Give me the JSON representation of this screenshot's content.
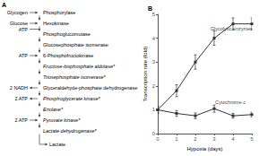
{
  "chart_data": [
    {
      "type": "pathway",
      "title": "A",
      "steps": [
        "Phosphorylase",
        "Hexokinase",
        "Phosphoglucomutase",
        "Glucosephosphate isomerase",
        "6-Phosphofructokinase",
        "Fructose-bisphosphate aldolase*",
        "Triosephosphate isomerase*",
        "Glyceraldehyde-phosphate dehydrogenase",
        "Phosphoglycerate kinase*",
        "Enolase*",
        "Pyruvate kinase*",
        "Lactate dehydrogenase*"
      ],
      "inputs": [
        {
          "label": "Glycogen",
          "step": "Phosphorylase"
        },
        {
          "label": "Glucose",
          "step": "Hexokinase"
        },
        {
          "label": "ATP",
          "step": "Hexokinase"
        },
        {
          "label": "ATP",
          "step": "6-Phosphofructokinase"
        },
        {
          "label": "2 ATP",
          "step": "Pyruvate kinase*"
        }
      ],
      "outputs": [
        {
          "label": "2 NADH",
          "step": "Glyceraldehyde-phosphate dehydrogenase"
        },
        {
          "label": "2 ATP",
          "step": "Phosphoglycerate kinase*"
        }
      ],
      "product": "Lactate"
    },
    {
      "type": "line",
      "title": "B",
      "x_label": "Hypoxia (days)",
      "y_label": "Transcription rate (fold)",
      "xlim": [
        0,
        5
      ],
      "xticks": [
        0,
        1,
        2,
        3,
        4,
        5
      ],
      "ylim": [
        0,
        5
      ],
      "yticks": [
        0,
        1,
        2,
        3,
        4,
        5
      ],
      "grid": false,
      "series": [
        {
          "color": "#333333",
          "marker": "square",
          "line_style": "solid",
          "x": [
            0,
            1,
            2,
            3,
            4,
            5
          ],
          "values": [
            1.0,
            1.8,
            3.0,
            4.0,
            4.6,
            4.6
          ],
          "errors": [
            0.15,
            0.25,
            0.3,
            0.3,
            0.25,
            0.25
          ]
        },
        {
          "color": "#333333",
          "marker": "square",
          "line_style": "solid",
          "x": [
            0,
            1,
            2,
            3,
            4,
            5
          ],
          "values": [
            1.0,
            0.85,
            0.75,
            1.05,
            0.75,
            0.8
          ],
          "errors": [
            0.12,
            0.12,
            0.12,
            0.15,
            0.1,
            0.1
          ]
        }
      ],
      "annotations": [
        {
          "text": "Glycolytic enzymes",
          "x": 2.8,
          "y": 4.3
        },
        {
          "text": "Cytochrome c",
          "x": 3.05,
          "y": 1.2
        }
      ]
    }
  ]
}
